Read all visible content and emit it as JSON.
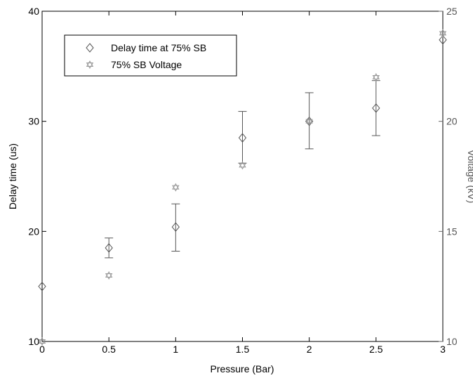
{
  "chart_data": {
    "type": "scatter",
    "xlabel": "Pressure (Bar)",
    "ylabel": "Delay time (us)",
    "ylabel_right": "Voltage (kV)",
    "xlim": [
      0,
      3
    ],
    "ylim": [
      10,
      40
    ],
    "ylim_right": [
      10,
      25
    ],
    "x_ticks": [
      0,
      0.5,
      1,
      1.5,
      2,
      2.5,
      3
    ],
    "x_tick_labels": [
      "0",
      "0.5",
      "1",
      "1.5",
      "2",
      "2.5",
      "3"
    ],
    "y_ticks": [
      10,
      20,
      30,
      40
    ],
    "y_tick_labels": [
      "10",
      "20",
      "30",
      "40"
    ],
    "y_right_ticks": [
      10,
      15,
      20,
      25
    ],
    "y_right_tick_labels": [
      "10",
      "15",
      "20",
      "25"
    ],
    "grid": false,
    "legend_position": "top-left",
    "colors": {
      "axis": "#000000",
      "right_axis": "#666666",
      "marker": "#555555",
      "star": "#999999"
    },
    "series": [
      {
        "name": "Delay time at 75% SB",
        "marker": "diamond",
        "axis": "left",
        "x": [
          0,
          0.5,
          1,
          1.5,
          2,
          2.5,
          3
        ],
        "y": [
          15.0,
          18.5,
          20.4,
          28.5,
          30.0,
          31.2,
          37.4
        ],
        "error_low": [
          null,
          17.6,
          18.2,
          26.2,
          27.5,
          28.7,
          null
        ],
        "error_high": [
          null,
          19.4,
          22.5,
          30.9,
          32.6,
          33.7,
          null
        ]
      },
      {
        "name": "75% SB Voltage",
        "marker": "star",
        "axis": "right",
        "x": [
          0,
          0.5,
          1,
          1.5,
          2,
          2.5,
          3
        ],
        "y": [
          10.0,
          13.0,
          17.0,
          18.0,
          20.0,
          22.0,
          24.0
        ]
      }
    ]
  }
}
